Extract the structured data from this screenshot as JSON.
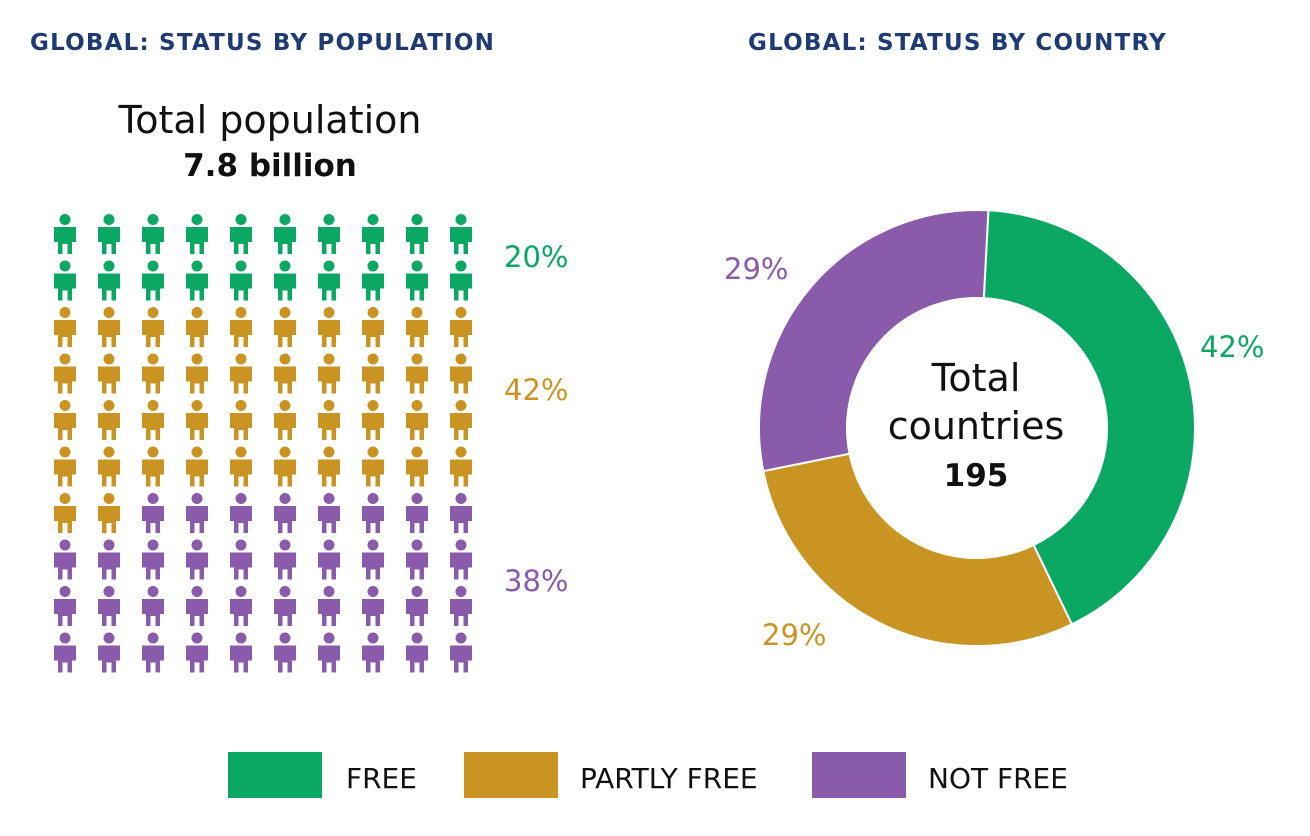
{
  "titles": {
    "left": "GLOBAL: STATUS BY POPULATION",
    "right": "GLOBAL: STATUS BY COUNTRY"
  },
  "colors": {
    "free": "#0aa862",
    "partly_free": "#c99422",
    "not_free": "#8a5bab",
    "title": "#1f3b73"
  },
  "chart_data": [
    {
      "type": "pictogram",
      "title": "GLOBAL: STATUS BY POPULATION",
      "total_label": "Total population",
      "total_value": "7.8 billion",
      "grid": {
        "rows": 10,
        "cols": 10
      },
      "categories": [
        "FREE",
        "PARTLY FREE",
        "NOT FREE"
      ],
      "values": [
        20,
        42,
        38
      ],
      "value_labels": [
        "20%",
        "42%",
        "38%"
      ]
    },
    {
      "type": "pie",
      "title": "GLOBAL: STATUS BY COUNTRY",
      "center_label": [
        "Total",
        "countries"
      ],
      "center_value": "195",
      "categories": [
        "FREE",
        "PARTLY FREE",
        "NOT FREE"
      ],
      "values": [
        42,
        29,
        29
      ],
      "value_labels": [
        "42%",
        "29%",
        "29%"
      ]
    }
  ],
  "legend": {
    "items": [
      "FREE",
      "PARTLY FREE",
      "NOT FREE"
    ]
  }
}
